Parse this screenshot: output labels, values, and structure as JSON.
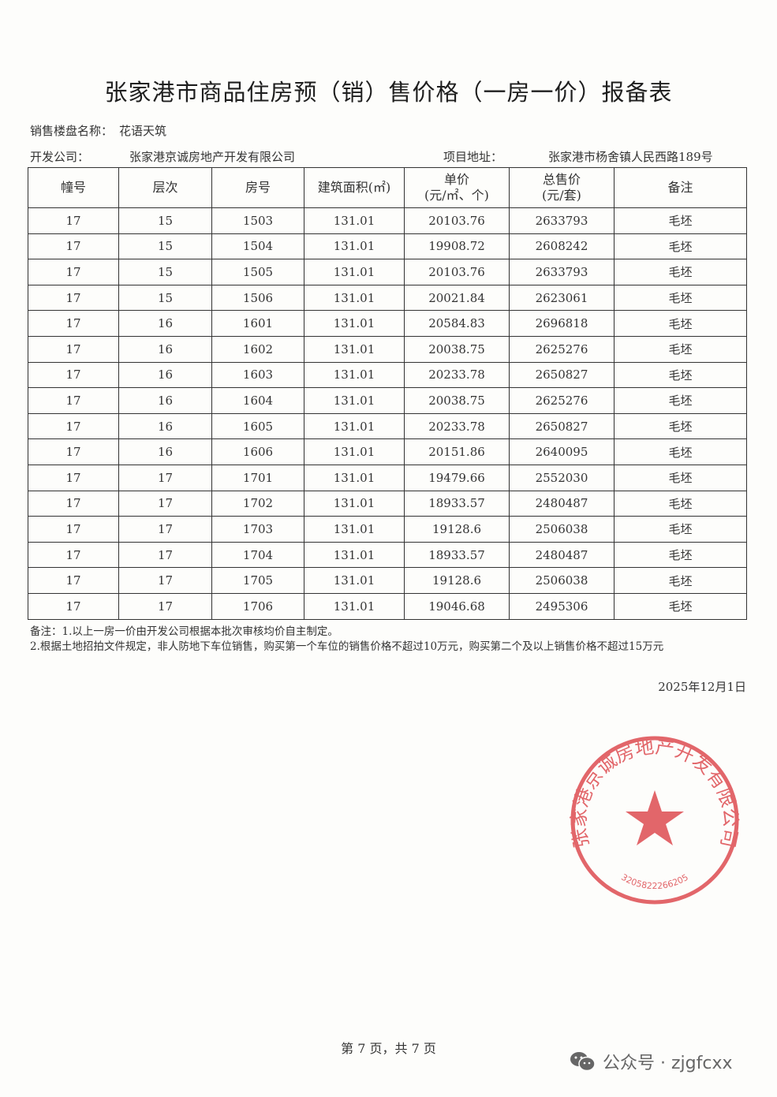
{
  "title": "张家港市商品住房预（销）售价格（一房一价）报备表",
  "project_label": "销售楼盘名称：",
  "project_name": "花语天筑",
  "developer_label": "开发公司：",
  "developer_name": "张家港京诚房地产开发有限公司",
  "address_label": "项目地址：",
  "address": "张家港市杨舍镇人民西路189号",
  "table": {
    "headers": [
      "幢号",
      "层次",
      "房号",
      "建筑面积(㎡)",
      "单价\n(元/㎡、个)",
      "总售价\n(元/套)",
      "备注"
    ],
    "rows": [
      [
        "17",
        "15",
        "1503",
        "131.01",
        "20103.76",
        "2633793",
        "毛坯"
      ],
      [
        "17",
        "15",
        "1504",
        "131.01",
        "19908.72",
        "2608242",
        "毛坯"
      ],
      [
        "17",
        "15",
        "1505",
        "131.01",
        "20103.76",
        "2633793",
        "毛坯"
      ],
      [
        "17",
        "15",
        "1506",
        "131.01",
        "20021.84",
        "2623061",
        "毛坯"
      ],
      [
        "17",
        "16",
        "1601",
        "131.01",
        "20584.83",
        "2696818",
        "毛坯"
      ],
      [
        "17",
        "16",
        "1602",
        "131.01",
        "20038.75",
        "2625276",
        "毛坯"
      ],
      [
        "17",
        "16",
        "1603",
        "131.01",
        "20233.78",
        "2650827",
        "毛坯"
      ],
      [
        "17",
        "16",
        "1604",
        "131.01",
        "20038.75",
        "2625276",
        "毛坯"
      ],
      [
        "17",
        "16",
        "1605",
        "131.01",
        "20233.78",
        "2650827",
        "毛坯"
      ],
      [
        "17",
        "16",
        "1606",
        "131.01",
        "20151.86",
        "2640095",
        "毛坯"
      ],
      [
        "17",
        "17",
        "1701",
        "131.01",
        "19479.66",
        "2552030",
        "毛坯"
      ],
      [
        "17",
        "17",
        "1702",
        "131.01",
        "18933.57",
        "2480487",
        "毛坯"
      ],
      [
        "17",
        "17",
        "1703",
        "131.01",
        "19128.6",
        "2506038",
        "毛坯"
      ],
      [
        "17",
        "17",
        "1704",
        "131.01",
        "18933.57",
        "2480487",
        "毛坯"
      ],
      [
        "17",
        "17",
        "1705",
        "131.01",
        "19128.6",
        "2506038",
        "毛坯"
      ],
      [
        "17",
        "17",
        "1706",
        "131.01",
        "19046.68",
        "2495306",
        "毛坯"
      ]
    ]
  },
  "notes": [
    "备注：1.以上一房一价由开发公司根据本批次审核均价自主制定。",
    "2.根据土地招拍文件规定，非人防地下车位销售，购买第一个车位的销售价格不超过10万元，购买第二个及以上销售价格不超过15万元"
  ],
  "date": "2025年12月1日",
  "page_footer": "第 7 页，共 7 页",
  "stamp": {
    "text": "张家港京诚房地产开发有限公司",
    "code": "3205822266205",
    "color": "#d9343a"
  },
  "watermark": {
    "icon": "wechat-icon",
    "label": "公众号 · zjgfcxx"
  }
}
